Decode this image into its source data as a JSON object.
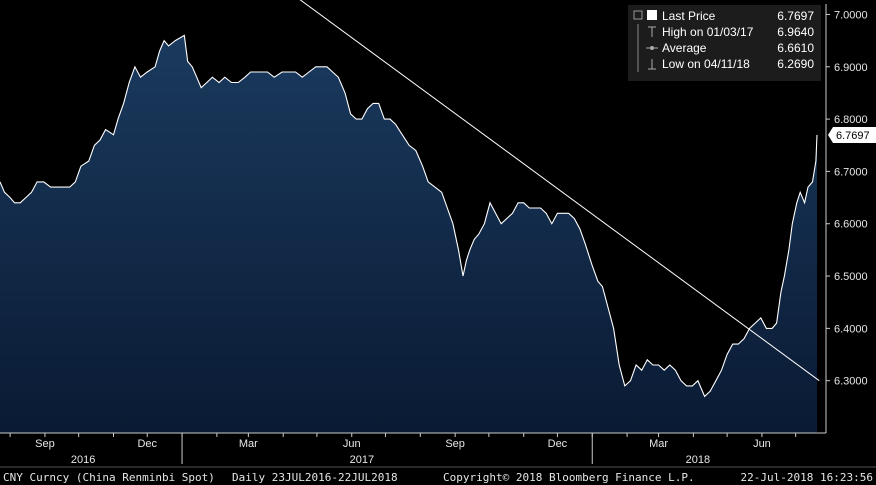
{
  "chart_data": {
    "type": "area",
    "ylim": [
      6.2,
      7.02
    ],
    "y_ticks": [
      "7.0000",
      "6.9000",
      "6.8000",
      "6.7000",
      "6.6000",
      "6.5000",
      "6.4000",
      "6.3000"
    ],
    "x_ticks": [
      {
        "label": "Sep",
        "date": "2016-09-01"
      },
      {
        "label": "Dec",
        "date": "2016-12-01"
      },
      {
        "label": "Mar",
        "date": "2017-03-01"
      },
      {
        "label": "Jun",
        "date": "2017-06-01"
      },
      {
        "label": "Sep",
        "date": "2017-09-01"
      },
      {
        "label": "Dec",
        "date": "2017-12-01"
      },
      {
        "label": "Mar",
        "date": "2018-03-01"
      },
      {
        "label": "Jun",
        "date": "2018-06-01"
      }
    ],
    "years": [
      "2016",
      "2017",
      "2018"
    ],
    "series": [
      {
        "name": "Last Price",
        "points": [
          [
            "2016-07-23",
            6.68
          ],
          [
            "2016-07-27",
            6.66
          ],
          [
            "2016-08-01",
            6.65
          ],
          [
            "2016-08-05",
            6.64
          ],
          [
            "2016-08-10",
            6.64
          ],
          [
            "2016-08-15",
            6.65
          ],
          [
            "2016-08-20",
            6.66
          ],
          [
            "2016-08-25",
            6.68
          ],
          [
            "2016-08-31",
            6.68
          ],
          [
            "2016-09-06",
            6.67
          ],
          [
            "2016-09-12",
            6.67
          ],
          [
            "2016-09-18",
            6.67
          ],
          [
            "2016-09-23",
            6.67
          ],
          [
            "2016-09-28",
            6.68
          ],
          [
            "2016-10-03",
            6.71
          ],
          [
            "2016-10-10",
            6.72
          ],
          [
            "2016-10-15",
            6.75
          ],
          [
            "2016-10-20",
            6.76
          ],
          [
            "2016-10-25",
            6.78
          ],
          [
            "2016-11-01",
            6.77
          ],
          [
            "2016-11-05",
            6.8
          ],
          [
            "2016-11-10",
            6.83
          ],
          [
            "2016-11-15",
            6.87
          ],
          [
            "2016-11-20",
            6.9
          ],
          [
            "2016-11-25",
            6.88
          ],
          [
            "2016-12-01",
            6.89
          ],
          [
            "2016-12-08",
            6.9
          ],
          [
            "2016-12-12",
            6.93
          ],
          [
            "2016-12-16",
            6.95
          ],
          [
            "2016-12-20",
            6.94
          ],
          [
            "2016-12-26",
            6.95
          ],
          [
            "2017-01-03",
            6.96
          ],
          [
            "2017-01-06",
            6.91
          ],
          [
            "2017-01-10",
            6.9
          ],
          [
            "2017-01-14",
            6.88
          ],
          [
            "2017-01-18",
            6.86
          ],
          [
            "2017-01-23",
            6.87
          ],
          [
            "2017-01-28",
            6.88
          ],
          [
            "2017-02-03",
            6.87
          ],
          [
            "2017-02-08",
            6.88
          ],
          [
            "2017-02-14",
            6.87
          ],
          [
            "2017-02-20",
            6.87
          ],
          [
            "2017-02-26",
            6.88
          ],
          [
            "2017-03-03",
            6.89
          ],
          [
            "2017-03-08",
            6.89
          ],
          [
            "2017-03-13",
            6.89
          ],
          [
            "2017-03-18",
            6.89
          ],
          [
            "2017-03-24",
            6.88
          ],
          [
            "2017-03-31",
            6.89
          ],
          [
            "2017-04-06",
            6.89
          ],
          [
            "2017-04-12",
            6.89
          ],
          [
            "2017-04-18",
            6.88
          ],
          [
            "2017-04-24",
            6.89
          ],
          [
            "2017-04-30",
            6.9
          ],
          [
            "2017-05-05",
            6.9
          ],
          [
            "2017-05-10",
            6.9
          ],
          [
            "2017-05-15",
            6.89
          ],
          [
            "2017-05-20",
            6.88
          ],
          [
            "2017-05-26",
            6.85
          ],
          [
            "2017-05-31",
            6.81
          ],
          [
            "2017-06-05",
            6.8
          ],
          [
            "2017-06-10",
            6.8
          ],
          [
            "2017-06-15",
            6.82
          ],
          [
            "2017-06-20",
            6.83
          ],
          [
            "2017-06-25",
            6.83
          ],
          [
            "2017-06-30",
            6.8
          ],
          [
            "2017-07-05",
            6.8
          ],
          [
            "2017-07-10",
            6.79
          ],
          [
            "2017-07-16",
            6.77
          ],
          [
            "2017-07-22",
            6.75
          ],
          [
            "2017-07-28",
            6.74
          ],
          [
            "2017-08-03",
            6.71
          ],
          [
            "2017-08-08",
            6.68
          ],
          [
            "2017-08-14",
            6.67
          ],
          [
            "2017-08-20",
            6.66
          ],
          [
            "2017-08-25",
            6.63
          ],
          [
            "2017-08-30",
            6.6
          ],
          [
            "2017-09-04",
            6.55
          ],
          [
            "2017-09-08",
            6.5
          ],
          [
            "2017-09-11",
            6.53
          ],
          [
            "2017-09-14",
            6.55
          ],
          [
            "2017-09-18",
            6.57
          ],
          [
            "2017-09-22",
            6.58
          ],
          [
            "2017-09-27",
            6.6
          ],
          [
            "2017-10-02",
            6.64
          ],
          [
            "2017-10-07",
            6.62
          ],
          [
            "2017-10-12",
            6.6
          ],
          [
            "2017-10-17",
            6.61
          ],
          [
            "2017-10-22",
            6.62
          ],
          [
            "2017-10-27",
            6.64
          ],
          [
            "2017-11-01",
            6.64
          ],
          [
            "2017-11-06",
            6.63
          ],
          [
            "2017-11-11",
            6.63
          ],
          [
            "2017-11-16",
            6.63
          ],
          [
            "2017-11-21",
            6.62
          ],
          [
            "2017-11-26",
            6.6
          ],
          [
            "2017-12-01",
            6.62
          ],
          [
            "2017-12-06",
            6.62
          ],
          [
            "2017-12-11",
            6.62
          ],
          [
            "2017-12-16",
            6.61
          ],
          [
            "2017-12-21",
            6.59
          ],
          [
            "2017-12-26",
            6.56
          ],
          [
            "2018-01-01",
            6.52
          ],
          [
            "2018-01-06",
            6.49
          ],
          [
            "2018-01-10",
            6.48
          ],
          [
            "2018-01-15",
            6.44
          ],
          [
            "2018-01-20",
            6.4
          ],
          [
            "2018-01-25",
            6.33
          ],
          [
            "2018-01-30",
            6.29
          ],
          [
            "2018-02-04",
            6.3
          ],
          [
            "2018-02-09",
            6.33
          ],
          [
            "2018-02-14",
            6.32
          ],
          [
            "2018-02-19",
            6.34
          ],
          [
            "2018-02-24",
            6.33
          ],
          [
            "2018-03-01",
            6.33
          ],
          [
            "2018-03-06",
            6.32
          ],
          [
            "2018-03-11",
            6.33
          ],
          [
            "2018-03-16",
            6.32
          ],
          [
            "2018-03-21",
            6.3
          ],
          [
            "2018-03-26",
            6.29
          ],
          [
            "2018-03-31",
            6.29
          ],
          [
            "2018-04-05",
            6.3
          ],
          [
            "2018-04-11",
            6.27
          ],
          [
            "2018-04-16",
            6.28
          ],
          [
            "2018-04-21",
            6.3
          ],
          [
            "2018-04-26",
            6.32
          ],
          [
            "2018-05-01",
            6.35
          ],
          [
            "2018-05-06",
            6.37
          ],
          [
            "2018-05-11",
            6.37
          ],
          [
            "2018-05-16",
            6.38
          ],
          [
            "2018-05-21",
            6.4
          ],
          [
            "2018-05-26",
            6.41
          ],
          [
            "2018-05-31",
            6.42
          ],
          [
            "2018-06-05",
            6.4
          ],
          [
            "2018-06-10",
            6.4
          ],
          [
            "2018-06-14",
            6.41
          ],
          [
            "2018-06-18",
            6.47
          ],
          [
            "2018-06-21",
            6.5
          ],
          [
            "2018-06-25",
            6.55
          ],
          [
            "2018-06-28",
            6.6
          ],
          [
            "2018-07-02",
            6.64
          ],
          [
            "2018-07-05",
            6.66
          ],
          [
            "2018-07-09",
            6.64
          ],
          [
            "2018-07-12",
            6.67
          ],
          [
            "2018-07-16",
            6.68
          ],
          [
            "2018-07-19",
            6.72
          ],
          [
            "2018-07-20",
            6.7697
          ]
        ]
      }
    ],
    "trendline": {
      "from": [
        "2016-12-28",
        7.2
      ],
      "to": [
        "2018-07-22",
        6.3
      ]
    },
    "last_value_label": "6.7697",
    "legend_position": "top-right"
  },
  "legend": {
    "items": [
      {
        "label": "Last Price",
        "value": "6.7697",
        "marker": "box"
      },
      {
        "label": "High on 01/03/17",
        "value": "6.9640",
        "marker": "high"
      },
      {
        "label": "Average",
        "value": "6.6610",
        "marker": "avg"
      },
      {
        "label": "Low on 04/11/18",
        "value": "6.2690",
        "marker": "low"
      }
    ]
  },
  "footer": {
    "security": "CNY Curncy (China Renminbi Spot)",
    "period": "Daily 23JUL2016-22JUL2018",
    "copyright": "Copyright© 2018 Bloomberg Finance L.P.",
    "timestamp": "22-Jul-2018 16:23:56"
  },
  "colors": {
    "background": "#000000",
    "area_top": "#1a3a5e",
    "area_bottom": "#0a1a33",
    "line": "#ffffff",
    "legend_bg": "#1c1c1c"
  }
}
